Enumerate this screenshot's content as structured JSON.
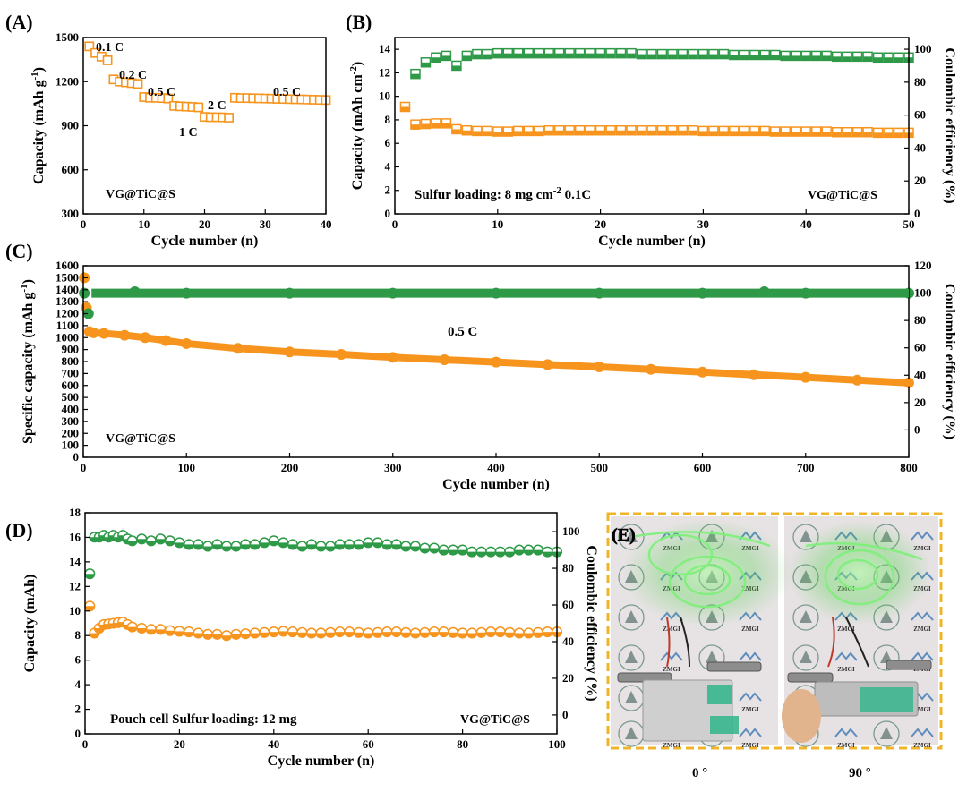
{
  "figure": {
    "colors": {
      "orange": "#f7941d",
      "green": "#2e9a48",
      "axis": "#000000",
      "frame": "#f0b429"
    }
  },
  "chart_data": [
    {
      "panel": "(A)",
      "type": "scatter",
      "xlabel": "Cycle number (n)",
      "ylabel": "Capacity (mAh g-1)",
      "xlim": [
        0,
        40
      ],
      "ylim": [
        300,
        1500
      ],
      "xticks": [
        "0",
        "10",
        "20",
        "30",
        "40"
      ],
      "yticks": [
        "300",
        "600",
        "900",
        "1200",
        "1500"
      ],
      "annotations": [
        {
          "text": "0.1 C"
        },
        {
          "text": "0.2 C"
        },
        {
          "text": "0.5 C"
        },
        {
          "text": "1 C"
        },
        {
          "text": "2 C"
        },
        {
          "text": "0.5 C"
        },
        {
          "text": "VG@TiC@S"
        }
      ],
      "series": [
        {
          "name": "Capacity",
          "marker": "open-square",
          "color": "#f7941d",
          "x": [
            1,
            2,
            3,
            4,
            5,
            6,
            7,
            8,
            9,
            10,
            11,
            12,
            13,
            14,
            15,
            16,
            17,
            18,
            19,
            20,
            21,
            22,
            23,
            24,
            25,
            26,
            27,
            28,
            29,
            30,
            31,
            32,
            33,
            34,
            35,
            36,
            37,
            38,
            39,
            40
          ],
          "y": [
            1440,
            1395,
            1370,
            1345,
            1215,
            1200,
            1195,
            1190,
            1185,
            1095,
            1090,
            1090,
            1088,
            1085,
            1035,
            1032,
            1030,
            1028,
            1025,
            960,
            958,
            958,
            957,
            955,
            1090,
            1088,
            1088,
            1087,
            1086,
            1085,
            1084,
            1083,
            1082,
            1081,
            1080,
            1079,
            1078,
            1077,
            1076,
            1075
          ]
        }
      ]
    },
    {
      "panel": "(B)",
      "type": "scatter",
      "xlabel": "Cycle number (n)",
      "ylabel": "Capacity (mAh cm-2)",
      "y2label": "Coulombic efficiency (%)",
      "xlim": [
        0,
        50
      ],
      "ylim": [
        0,
        15
      ],
      "y2lim": [
        0,
        107.1
      ],
      "xticks": [
        "0",
        "10",
        "20",
        "30",
        "40",
        "50"
      ],
      "yticks": [
        "0",
        "2",
        "4",
        "6",
        "8",
        "10",
        "12",
        "14"
      ],
      "y2ticks": [
        "0",
        "20",
        "40",
        "60",
        "80",
        "100"
      ],
      "annotations": [
        {
          "text": "Sulfur loading: 8 mg cm-2   0.1C"
        },
        {
          "text": "VG@TiC@S"
        }
      ],
      "series": [
        {
          "name": "Capacity",
          "marker": "half-square",
          "color": "#f7941d",
          "x": [
            1,
            2,
            3,
            4,
            5,
            6,
            7,
            8,
            9,
            10,
            11,
            12,
            13,
            14,
            15,
            16,
            17,
            18,
            19,
            20,
            21,
            22,
            23,
            24,
            25,
            26,
            27,
            28,
            29,
            30,
            31,
            32,
            33,
            34,
            35,
            36,
            37,
            38,
            39,
            40,
            41,
            42,
            43,
            44,
            45,
            46,
            47,
            48,
            49,
            50
          ],
          "y": [
            9.1,
            7.6,
            7.65,
            7.7,
            7.7,
            7.2,
            7.1,
            7.05,
            7.05,
            7.0,
            7.0,
            7.05,
            7.05,
            7.05,
            7.1,
            7.1,
            7.1,
            7.1,
            7.1,
            7.1,
            7.1,
            7.1,
            7.1,
            7.1,
            7.1,
            7.1,
            7.1,
            7.1,
            7.1,
            7.05,
            7.05,
            7.05,
            7.05,
            7.05,
            7.05,
            7.05,
            7.0,
            7.0,
            7.0,
            7.0,
            7.0,
            7.0,
            6.95,
            6.95,
            6.95,
            6.95,
            6.9,
            6.9,
            6.9,
            6.9
          ]
        },
        {
          "name": "Coulombic efficiency",
          "axis": "right",
          "marker": "half-square",
          "color": "#2e9a48",
          "x": [
            2,
            3,
            4,
            5,
            6,
            7,
            8,
            9,
            10,
            11,
            12,
            13,
            14,
            15,
            16,
            17,
            18,
            19,
            20,
            21,
            22,
            23,
            24,
            25,
            26,
            27,
            28,
            29,
            30,
            31,
            32,
            33,
            34,
            35,
            36,
            37,
            38,
            39,
            40,
            41,
            42,
            43,
            44,
            45,
            46,
            47,
            48,
            49,
            50
          ],
          "y": [
            85,
            92,
            95,
            96,
            90,
            96,
            97,
            97,
            97.5,
            97.5,
            97.5,
            97.5,
            97.5,
            97.5,
            97.5,
            97.5,
            97.5,
            97.5,
            97.5,
            97.5,
            97.5,
            97.5,
            97,
            97,
            97,
            97,
            97,
            97,
            97,
            97,
            97,
            96.5,
            96.5,
            96.5,
            96.5,
            96.5,
            96,
            96,
            96,
            96,
            96,
            95.5,
            95.5,
            95.5,
            95.5,
            95,
            95,
            95,
            95
          ]
        }
      ]
    },
    {
      "panel": "(C)",
      "type": "scatter",
      "xlabel": "Cycle number (n)",
      "ylabel": "Specific capacity (mAh g-1)",
      "y2label": "Coulombic efficiency (%)",
      "xlim": [
        0,
        800
      ],
      "ylim": [
        0,
        1600
      ],
      "y2lim": [
        -20,
        120
      ],
      "xticks": [
        "0",
        "100",
        "200",
        "300",
        "400",
        "500",
        "600",
        "700",
        "800"
      ],
      "yticks": [
        "0",
        "100",
        "200",
        "300",
        "400",
        "500",
        "600",
        "700",
        "800",
        "900",
        "1000",
        "1100",
        "1200",
        "1300",
        "1400",
        "1500",
        "1600"
      ],
      "y2ticks": [
        "0",
        "20",
        "40",
        "60",
        "80",
        "100",
        "120"
      ],
      "annotations": [
        {
          "text": "0.5 C"
        },
        {
          "text": "VG@TiC@S"
        }
      ],
      "series": [
        {
          "name": "Specific capacity",
          "marker": "filled-circle",
          "color": "#f7941d",
          "x": [
            1,
            3,
            6,
            10,
            20,
            40,
            60,
            80,
            100,
            150,
            200,
            250,
            300,
            350,
            400,
            450,
            500,
            550,
            600,
            650,
            700,
            750,
            800
          ],
          "y": [
            1500,
            1250,
            1050,
            1040,
            1035,
            1020,
            1000,
            975,
            950,
            910,
            880,
            860,
            835,
            815,
            795,
            775,
            755,
            735,
            712,
            690,
            668,
            645,
            622
          ]
        },
        {
          "name": "Coulombic efficiency",
          "axis": "right",
          "marker": "filled-circle",
          "color": "#2e9a48",
          "x": [
            1,
            5,
            50,
            100,
            200,
            300,
            400,
            500,
            600,
            660,
            700,
            800
          ],
          "y": [
            100,
            85,
            101,
            100,
            100,
            100,
            100,
            100,
            100,
            101,
            100,
            100
          ]
        }
      ]
    },
    {
      "panel": "(D)",
      "type": "scatter",
      "xlabel": "Cycle number (n)",
      "ylabel": "Capacity (mAh)",
      "y2label": "Coulombic efficiency (%)",
      "xlim": [
        0,
        100
      ],
      "ylim": [
        0,
        18
      ],
      "y2lim": [
        -10.3,
        110.3
      ],
      "xticks": [
        "0",
        "20",
        "40",
        "60",
        "80",
        "100"
      ],
      "yticks": [
        "0",
        "2",
        "4",
        "6",
        "8",
        "10",
        "12",
        "14",
        "16",
        "18"
      ],
      "y2ticks": [
        "0",
        "20",
        "40",
        "60",
        "80",
        "100"
      ],
      "annotations": [
        {
          "text": "Pouch cell   Sulfur loading:  12 mg"
        },
        {
          "text": "VG@TiC@S"
        }
      ],
      "series": [
        {
          "name": "Capacity",
          "marker": "half-circle",
          "color": "#f7941d",
          "x": [
            1,
            2,
            3,
            4,
            5,
            6,
            7,
            8,
            9,
            10,
            12,
            14,
            16,
            18,
            20,
            22,
            24,
            26,
            28,
            30,
            32,
            34,
            36,
            38,
            40,
            42,
            44,
            46,
            48,
            50,
            52,
            54,
            56,
            58,
            60,
            62,
            64,
            66,
            68,
            70,
            72,
            74,
            76,
            78,
            80,
            82,
            84,
            86,
            88,
            90,
            92,
            94,
            96,
            98,
            100
          ],
          "y": [
            10.4,
            8.2,
            8.6,
            8.9,
            8.95,
            9.0,
            9.05,
            9.1,
            8.9,
            8.7,
            8.6,
            8.5,
            8.5,
            8.4,
            8.35,
            8.3,
            8.2,
            8.1,
            8.1,
            8.0,
            8.1,
            8.15,
            8.2,
            8.25,
            8.3,
            8.35,
            8.3,
            8.25,
            8.2,
            8.2,
            8.25,
            8.3,
            8.3,
            8.25,
            8.2,
            8.25,
            8.3,
            8.3,
            8.25,
            8.2,
            8.25,
            8.3,
            8.3,
            8.25,
            8.2,
            8.2,
            8.25,
            8.3,
            8.3,
            8.25,
            8.2,
            8.2,
            8.25,
            8.3,
            8.3
          ]
        },
        {
          "name": "Coulombic efficiency",
          "axis": "right",
          "marker": "half-circle",
          "color": "#2e9a48",
          "x": [
            1,
            2,
            3,
            4,
            5,
            6,
            7,
            8,
            9,
            10,
            12,
            14,
            16,
            18,
            20,
            22,
            24,
            26,
            28,
            30,
            32,
            34,
            36,
            38,
            40,
            42,
            44,
            46,
            48,
            50,
            52,
            54,
            56,
            58,
            60,
            62,
            64,
            66,
            68,
            70,
            72,
            74,
            76,
            78,
            80,
            82,
            84,
            86,
            88,
            90,
            92,
            94,
            96,
            98,
            100
          ],
          "y": [
            77,
            97,
            97,
            98,
            97,
            98,
            97,
            98,
            96,
            95,
            96,
            95,
            96,
            95,
            94,
            93,
            93,
            92,
            93,
            92,
            92,
            93,
            93,
            94,
            95,
            94,
            93,
            92,
            93,
            92,
            92,
            93,
            93,
            93,
            94,
            94,
            93,
            93,
            92,
            92,
            91,
            91,
            90,
            90,
            90,
            89,
            89,
            89,
            89,
            89,
            90,
            90,
            90,
            89,
            89
          ]
        }
      ]
    }
  ],
  "panel_labels": {
    "a": "(A)",
    "b": "(B)",
    "c": "(C)",
    "d": "(D)",
    "e": "(E)"
  },
  "photo": {
    "left_caption": "0 °",
    "right_caption": "90 °",
    "logo_text": "ZMGI"
  }
}
